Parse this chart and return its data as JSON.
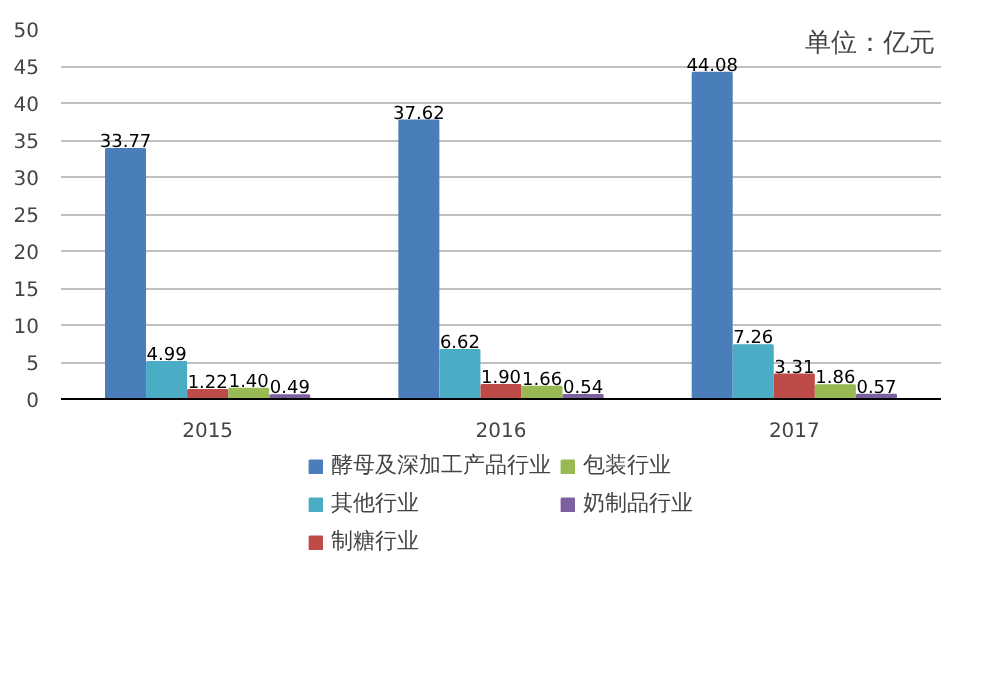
{
  "chart_data": {
    "type": "bar",
    "categories": [
      "2015",
      "2016",
      "2017"
    ],
    "series": [
      {
        "name": "酵母及深加工产品行业",
        "color": "#4a7ebb",
        "values": [
          33.77,
          37.62,
          44.08
        ],
        "value_labels": [
          "33.77",
          "37.62",
          "44.08"
        ]
      },
      {
        "name": "其他行业",
        "color": "#4bacc6",
        "values": [
          4.99,
          6.62,
          7.26
        ],
        "value_labels": [
          "4.99",
          "6.62",
          "7.26"
        ]
      },
      {
        "name": "制糖行业",
        "color": "#be4b48",
        "values": [
          1.22,
          1.9,
          3.31
        ],
        "value_labels": [
          "1.22",
          "1.90",
          "3.31"
        ]
      },
      {
        "name": "包装行业",
        "color": "#98b954",
        "values": [
          1.4,
          1.66,
          1.86
        ],
        "value_labels": [
          "1.40",
          "1.66",
          "1.86"
        ]
      },
      {
        "name": "奶制品行业",
        "color": "#7d60a0",
        "values": [
          0.49,
          0.54,
          0.57
        ],
        "value_labels": [
          "0.49",
          "0.54",
          "0.57"
        ]
      }
    ],
    "ylim": [
      0,
      50
    ],
    "yticks": [
      0,
      5,
      10,
      15,
      20,
      25,
      30,
      35,
      40,
      45,
      50
    ],
    "grid": "y",
    "legend": "bottom",
    "annotations": [
      "单位：亿元"
    ]
  }
}
